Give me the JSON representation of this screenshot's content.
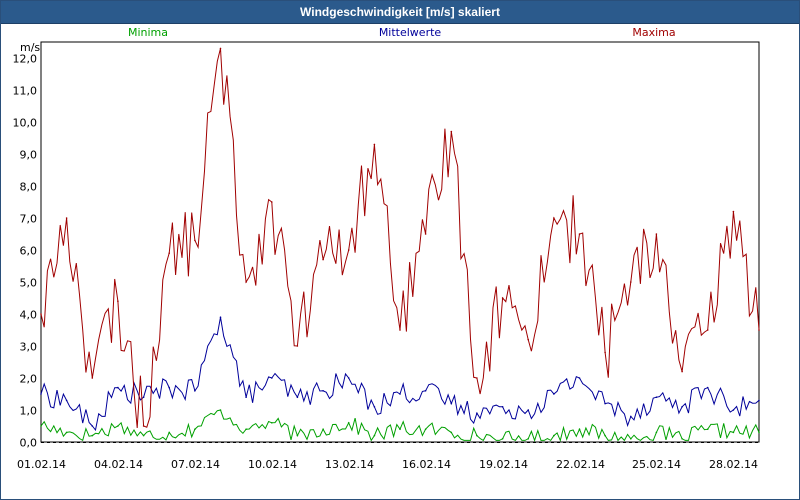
{
  "window": {
    "title": "Windgeschwindigkeit [m/s] skaliert"
  },
  "chart_data": {
    "type": "line",
    "title": "Windgeschwindigkeit [m/s] skaliert",
    "ylabel": "m/s",
    "xlabel": "",
    "ylim": [
      0,
      12.5
    ],
    "xlim": [
      "2014-02-01",
      "2014-03-01"
    ],
    "grid": true,
    "legend_position": "top",
    "yticks": [
      "0,0",
      "1,0",
      "2,0",
      "3,0",
      "4,0",
      "5,0",
      "6,0",
      "7,0",
      "8,0",
      "9,0",
      "10,0",
      "11,0",
      "12,0"
    ],
    "xticks": [
      "01.02.14",
      "04.02.14",
      "07.02.14",
      "10.02.14",
      "13.02.14",
      "16.02.14",
      "19.02.14",
      "22.02.14",
      "25.02.14",
      "28.02.14"
    ],
    "x": [
      "2014-02-01",
      "2014-02-02",
      "2014-02-03",
      "2014-02-04",
      "2014-02-05",
      "2014-02-06",
      "2014-02-07",
      "2014-02-08",
      "2014-02-09",
      "2014-02-10",
      "2014-02-11",
      "2014-02-12",
      "2014-02-13",
      "2014-02-14",
      "2014-02-15",
      "2014-02-16",
      "2014-02-17",
      "2014-02-18",
      "2014-02-19",
      "2014-02-20",
      "2014-02-21",
      "2014-02-22",
      "2014-02-23",
      "2014-02-24",
      "2014-02-25",
      "2014-02-26",
      "2014-02-27",
      "2014-02-28",
      "2014-03-01"
    ],
    "series": [
      {
        "name": "Minima",
        "color": "#00a000",
        "values": [
          0.5,
          0.3,
          0.2,
          0.5,
          0.2,
          0.3,
          0.4,
          1.0,
          0.4,
          0.6,
          0.2,
          0.4,
          0.6,
          0.2,
          0.4,
          0.4,
          0.3,
          0.2,
          0.1,
          0.1,
          0.2,
          0.4,
          0.2,
          0.1,
          0.3,
          0.1,
          0.4,
          0.3,
          0.3
        ]
      },
      {
        "name": "Mittelwerte",
        "color": "#00009a",
        "values": [
          1.5,
          1.3,
          0.5,
          1.7,
          1.4,
          1.7,
          1.6,
          3.9,
          1.4,
          2.0,
          1.4,
          1.6,
          2.0,
          1.1,
          1.5,
          1.6,
          1.2,
          0.9,
          1.1,
          1.0,
          1.5,
          2.0,
          1.2,
          0.8,
          1.4,
          1.1,
          1.7,
          1.0,
          1.3
        ]
      },
      {
        "name": "Maxima",
        "color": "#a00000",
        "values": [
          4.0,
          7.0,
          2.0,
          4.4,
          0.5,
          5.9,
          6.3,
          12.3,
          5.0,
          7.5,
          3.0,
          5.7,
          6.0,
          9.3,
          3.5,
          6.5,
          9.7,
          2.0,
          4.5,
          3.2,
          7.0,
          6.5,
          2.8,
          5.0,
          6.5,
          2.2,
          3.5,
          7.2,
          3.5
        ]
      }
    ]
  }
}
